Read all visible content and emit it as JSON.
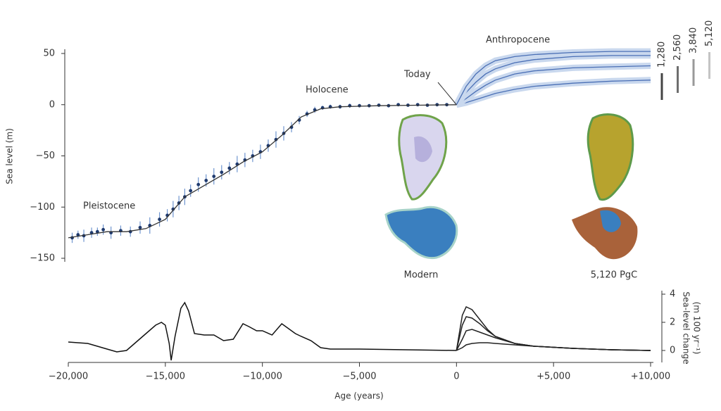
{
  "chart_data": [
    {
      "type": "line",
      "ylabel": "Sea level (m)",
      "xlim": [
        -20000,
        10000
      ],
      "ylim": [
        -150,
        50
      ],
      "yticks": [
        50,
        0,
        {
          "value": -50,
          "label": "−50"
        },
        {
          "value": -100,
          "label": "−100"
        },
        {
          "value": -150,
          "label": "−150"
        }
      ],
      "annotations": [
        {
          "text": "Pleistocene"
        },
        {
          "text": "Holocene"
        },
        {
          "text": "Today"
        },
        {
          "text": "Anthropocene"
        },
        {
          "text": "Modern"
        },
        {
          "text": "5,120 PgC"
        }
      ],
      "series": [
        {
          "type": "scatter",
          "color": "#1f3a6e",
          "error_color": "#6f95cf",
          "x": [
            -19800,
            -19500,
            -19200,
            -18800,
            -18500,
            -18200,
            -17800,
            -17300,
            -16800,
            -16300,
            -15800,
            -15300,
            -14900,
            -14600,
            -14300,
            -14000,
            -13700,
            -13300,
            -12900,
            -12500,
            -12100,
            -11700,
            -11300,
            -10900,
            -10500,
            -10100,
            -9700,
            -9300,
            -8900,
            -8500,
            -8100,
            -7700,
            -7300,
            -6900,
            -6500,
            -6000,
            -5500,
            -5000,
            -4500,
            -4000,
            -3500,
            -3000,
            -2500,
            -2000,
            -1500,
            -1000,
            -500
          ],
          "values": [
            -130,
            -127,
            -128,
            -125,
            -124,
            -122,
            -125,
            -123,
            -124,
            -120,
            -118,
            -112,
            -108,
            -102,
            -96,
            -90,
            -84,
            -78,
            -74,
            -70,
            -66,
            -62,
            -58,
            -54,
            -50,
            -46,
            -40,
            -34,
            -28,
            -22,
            -15,
            -9,
            -5,
            -3,
            -2,
            -2,
            -1,
            -1,
            -1,
            -0.5,
            -1,
            0,
            -0.5,
            0,
            -0.5,
            0,
            0
          ],
          "errors": [
            5,
            4,
            6,
            5,
            4,
            5,
            6,
            5,
            5,
            6,
            8,
            7,
            6,
            8,
            7,
            8,
            6,
            7,
            6,
            8,
            7,
            6,
            8,
            7,
            6,
            7,
            6,
            8,
            7,
            5,
            4,
            3,
            3,
            2,
            2,
            2,
            2,
            1,
            1,
            1,
            1,
            1,
            1,
            1,
            1,
            1,
            1
          ]
        },
        {
          "type": "line",
          "color": "#333333",
          "x": [
            -20000,
            -19000,
            -18000,
            -17000,
            -16000,
            -15000,
            -14000,
            -13000,
            -12000,
            -11000,
            -10000,
            -9000,
            -8000,
            -7000,
            -6000,
            -4000,
            -2000,
            0
          ],
          "values": [
            -130,
            -127,
            -124,
            -124,
            -121,
            -112,
            -90,
            -79,
            -68,
            -56,
            -46,
            -30,
            -12,
            -4,
            -2,
            -1,
            -0.5,
            0
          ]
        },
        {
          "type": "line",
          "name": "1,280",
          "color": "#4a6fb5",
          "band_color": "#c9d8ee",
          "legend_color": "#444444",
          "x": [
            0,
            500,
            1000,
            1500,
            2000,
            3000,
            4000,
            6000,
            8000,
            10000
          ],
          "values": [
            0,
            2,
            5,
            8,
            11,
            15,
            18,
            21,
            23,
            24
          ]
        },
        {
          "type": "line",
          "name": "2,560",
          "color": "#4a6fb5",
          "band_color": "#c9d8ee",
          "legend_color": "#6e6e6e",
          "x": [
            0,
            500,
            1000,
            1500,
            2000,
            3000,
            4000,
            6000,
            8000,
            10000
          ],
          "values": [
            0,
            6,
            13,
            19,
            24,
            30,
            33,
            36,
            37,
            38
          ]
        },
        {
          "type": "line",
          "name": "3,840",
          "color": "#4a6fb5",
          "band_color": "#c9d8ee",
          "legend_color": "#999999",
          "x": [
            0,
            500,
            1000,
            1500,
            2000,
            3000,
            4000,
            6000,
            8000,
            10000
          ],
          "values": [
            0,
            12,
            22,
            30,
            35,
            41,
            44,
            47,
            48,
            48
          ]
        },
        {
          "type": "line",
          "name": "5,120",
          "color": "#4a6fb5",
          "band_color": "#c9d8ee",
          "legend_color": "#c4c4c4",
          "x": [
            0,
            500,
            1000,
            1500,
            2000,
            3000,
            4000,
            6000,
            8000,
            10000
          ],
          "values": [
            0,
            18,
            30,
            38,
            43,
            47,
            49,
            51,
            52,
            52
          ]
        }
      ]
    },
    {
      "type": "line",
      "xlabel": "Age (years)",
      "y2label": [
        "Sea-level change",
        "(m 100 yr⁻¹)"
      ],
      "xlim": [
        -20000,
        10000
      ],
      "xticks": [
        {
          "value": -20000,
          "label": "−20,000"
        },
        {
          "value": -15000,
          "label": "−15,000"
        },
        {
          "value": -10000,
          "label": "−10,000"
        },
        {
          "value": -5000,
          "label": "−5,000"
        },
        0,
        {
          "value": 5000,
          "label": "+5,000"
        },
        {
          "value": 10000,
          "label": "+10,000"
        }
      ],
      "y2lim": [
        -1,
        4
      ],
      "y2ticks": [
        0,
        2,
        4
      ],
      "series": [
        {
          "axis": "y2",
          "color": "#111111",
          "x": [
            -20000,
            -19000,
            -18000,
            -17500,
            -17000,
            -16500,
            -16000,
            -15500,
            -15200,
            -15000,
            -14800,
            -14700,
            -14500,
            -14200,
            -14000,
            -13800,
            -13500,
            -13000,
            -12500,
            -12000,
            -11500,
            -11000,
            -10700,
            -10300,
            -10000,
            -9500,
            -9000,
            -8700,
            -8300,
            -8000,
            -7500,
            -7000,
            -6500,
            -5000,
            0
          ],
          "values": [
            0.6,
            0.5,
            0.1,
            -0.1,
            0,
            0.6,
            1.2,
            1.8,
            2,
            1.8,
            0.5,
            -0.7,
            1,
            3,
            3.4,
            2.8,
            1.2,
            1.1,
            1.1,
            0.7,
            0.8,
            1.9,
            1.7,
            1.4,
            1.4,
            1.1,
            1.9,
            1.6,
            1.2,
            1,
            0.7,
            0.2,
            0.1,
            0.1,
            0
          ]
        },
        {
          "axis": "y2",
          "color": "#222222",
          "x": [
            0,
            300,
            500,
            800,
            1200,
            1600,
            2000,
            3000,
            4000,
            6000,
            8000,
            10000
          ],
          "values": [
            0,
            0.2,
            0.4,
            0.5,
            0.55,
            0.55,
            0.5,
            0.4,
            0.3,
            0.15,
            0.05,
            0
          ]
        },
        {
          "axis": "y2",
          "color": "#222222",
          "x": [
            0,
            300,
            500,
            800,
            1200,
            1600,
            2000,
            3000,
            4000,
            6000,
            8000,
            10000
          ],
          "values": [
            0,
            0.8,
            1.4,
            1.5,
            1.3,
            1.1,
            0.9,
            0.5,
            0.3,
            0.15,
            0.05,
            0
          ]
        },
        {
          "axis": "y2",
          "color": "#222222",
          "x": [
            0,
            300,
            500,
            800,
            1200,
            1600,
            2000,
            3000,
            4000,
            6000,
            8000,
            10000
          ],
          "values": [
            0,
            1.8,
            2.4,
            2.3,
            1.9,
            1.4,
            1,
            0.5,
            0.3,
            0.15,
            0.05,
            0
          ]
        },
        {
          "axis": "y2",
          "color": "#222222",
          "x": [
            0,
            300,
            500,
            800,
            1200,
            1600,
            2000,
            3000,
            4000,
            6000,
            8000,
            10000
          ],
          "values": [
            0,
            2.5,
            3.1,
            2.9,
            2.2,
            1.5,
            1,
            0.5,
            0.3,
            0.15,
            0.05,
            0
          ]
        }
      ]
    }
  ]
}
